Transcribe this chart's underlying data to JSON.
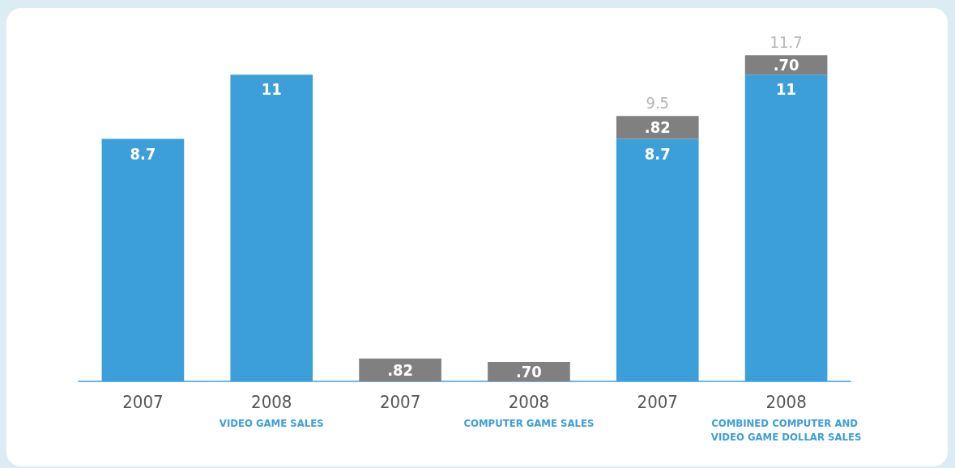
{
  "chart_data": {
    "type": "bar",
    "stacked": true,
    "categories": [
      "2007",
      "2008",
      "2007",
      "2008",
      "2007",
      "2008"
    ],
    "series": [
      {
        "color": "#3d9fd9",
        "values": [
          8.7,
          11,
          null,
          null,
          8.7,
          11
        ],
        "value_labels": [
          "8.7",
          "11",
          null,
          null,
          "8.7",
          "11"
        ]
      },
      {
        "color": "#808080",
        "values": [
          null,
          null,
          0.82,
          0.7,
          0.82,
          0.7
        ],
        "value_labels": [
          null,
          null,
          ".82",
          ".70",
          ".82",
          ".70"
        ]
      }
    ],
    "totals": [
      null,
      null,
      null,
      null,
      "9.5",
      "11.7"
    ],
    "annotations": [
      "VIDEO GAME SALES",
      "COMPUTER GAME SALES",
      "COMBINED COMPUTER AND VIDEO GAME DOLLAR SALES"
    ],
    "grid": false
  }
}
